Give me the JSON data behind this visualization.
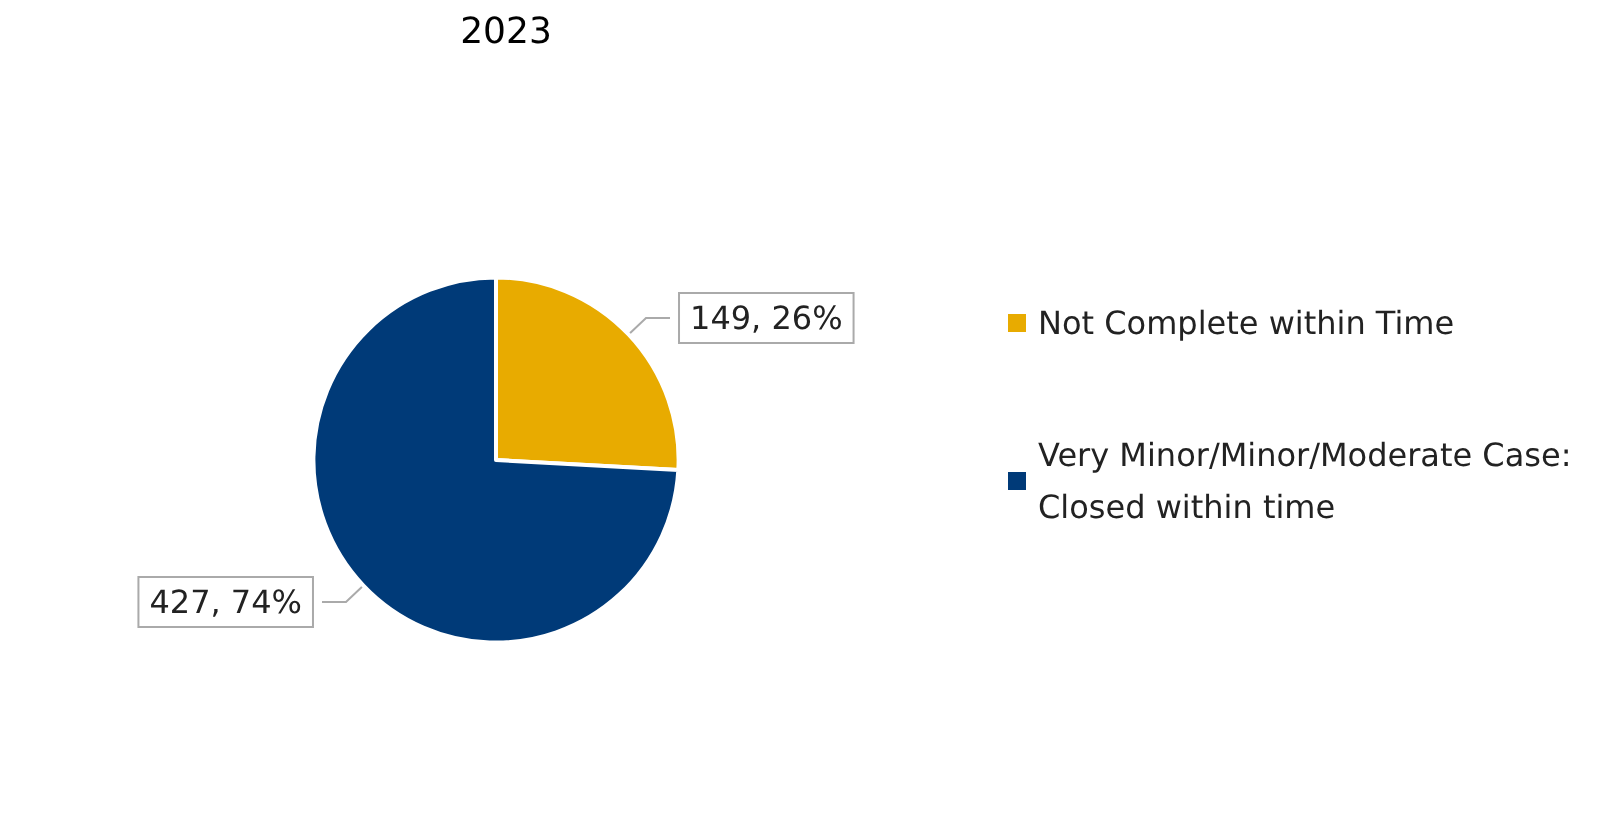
{
  "chart_data": {
    "type": "pie",
    "title": "2023",
    "categories": [
      "Not Complete within Time",
      "Very Minor/Minor/Moderate Case: Closed within time"
    ],
    "values": [
      149,
      427
    ],
    "value_labels": [
      "149, 26%",
      "427, 74%"
    ],
    "colors": [
      "#e8ab00",
      "#003a78"
    ],
    "legend": "right"
  }
}
